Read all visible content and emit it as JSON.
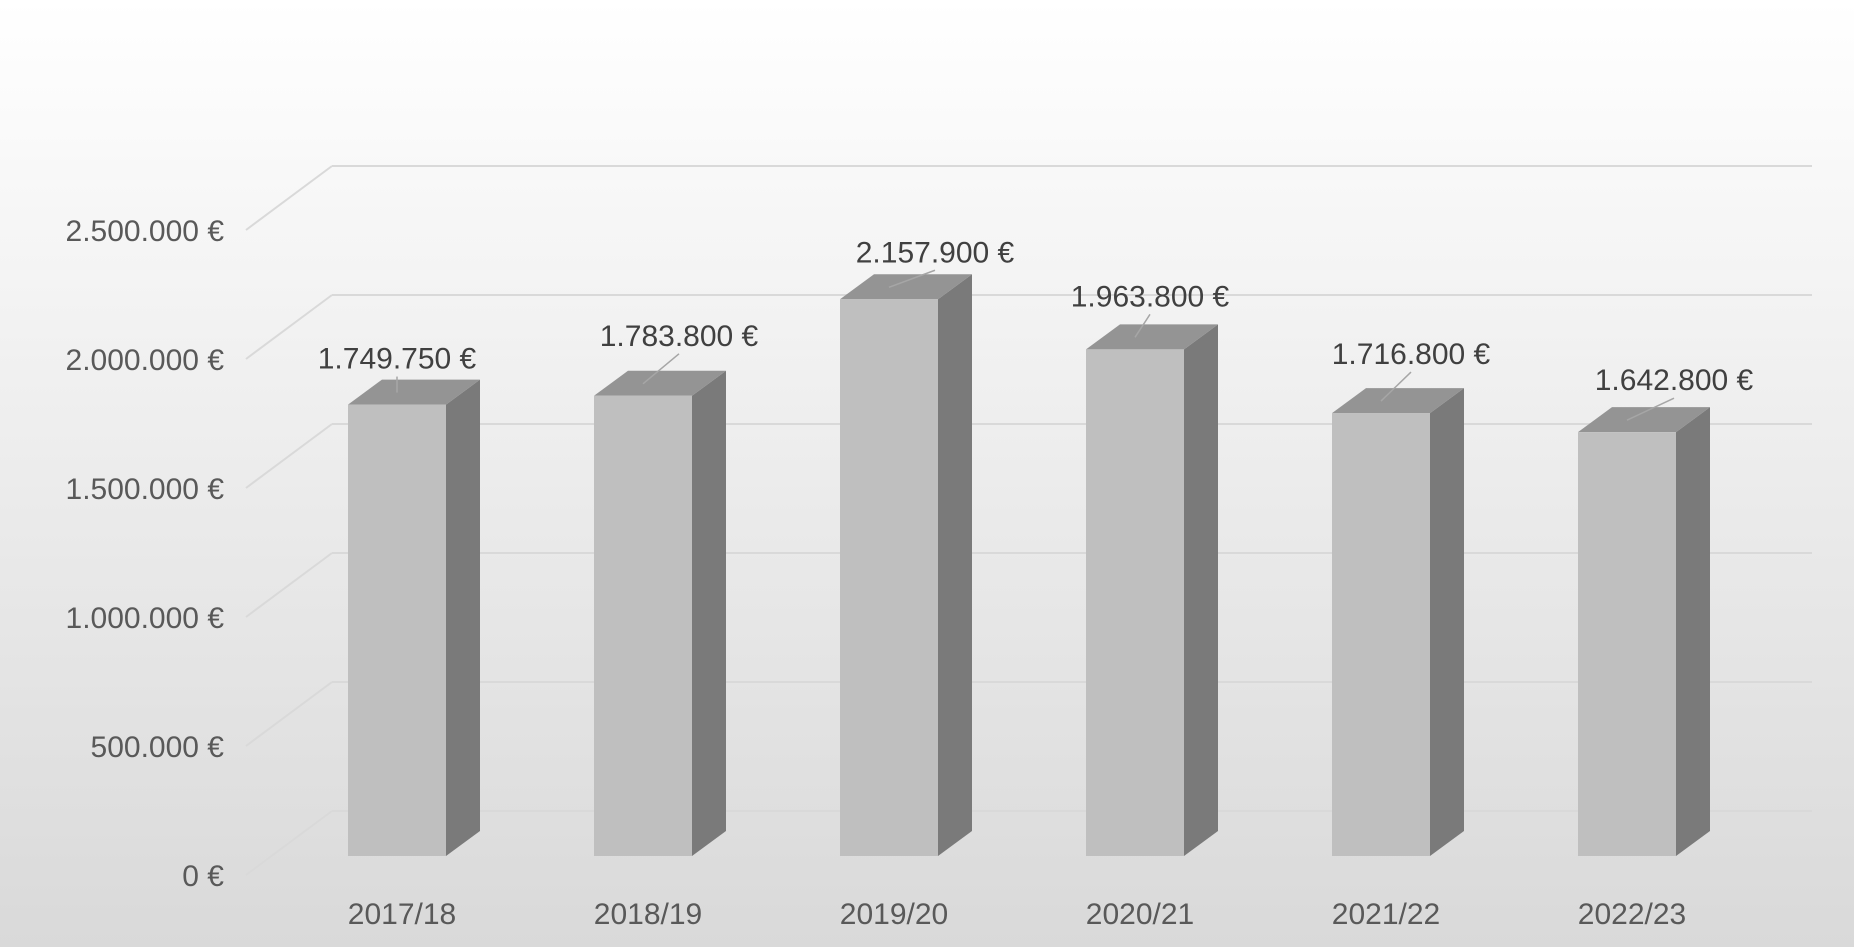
{
  "chart_data": {
    "type": "bar",
    "categories": [
      "2017/18",
      "2018/19",
      "2019/20",
      "2020/21",
      "2021/22",
      "2022/23"
    ],
    "values": [
      1749750,
      1783800,
      2157900,
      1963800,
      1716800,
      1642800
    ],
    "value_labels": [
      "1.749.750 €",
      "1.783.800 €",
      "2.157.900 €",
      "1.963.800 €",
      "1.716.800 €",
      "1.642.800 €"
    ],
    "ylim": [
      0,
      2500000
    ],
    "yticks": [
      0,
      500000,
      1000000,
      1500000,
      2000000,
      2500000
    ],
    "ytick_labels": [
      "0 €",
      "500.000 €",
      "1.000.000 €",
      "1.500.000 €",
      "2.000.000 €",
      "2.500.000 €"
    ],
    "grid": true,
    "three_d": true,
    "colors": {
      "bar_front": "#bfbfbf",
      "bar_side": "#7a7a7a",
      "bar_top": "#949494",
      "gridline": "#d9d9d9",
      "background_top": "#ffffff",
      "background_bottom": "#d9d9d9"
    }
  }
}
